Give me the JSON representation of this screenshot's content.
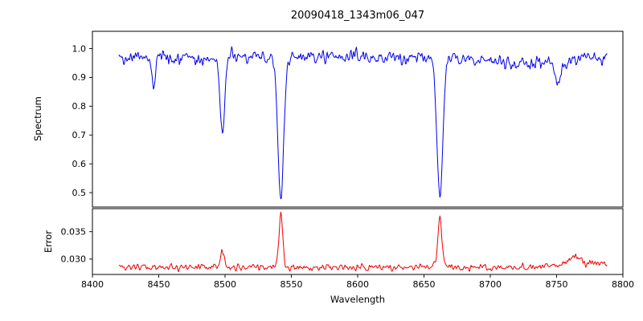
{
  "chart_data": {
    "type": "line",
    "title": "20090418_1343m06_047",
    "xlabel": "Wavelength",
    "xlim": [
      8400,
      8800
    ],
    "x_data_range": [
      8420,
      8788
    ],
    "x_step": 0.5,
    "xticks": [
      8400,
      8450,
      8500,
      8550,
      8600,
      8650,
      8700,
      8750,
      8800
    ],
    "xtick_labels": [
      "8400",
      "8450",
      "8500",
      "8550",
      "8600",
      "8650",
      "8700",
      "8750",
      "8800"
    ],
    "grid": false,
    "legend": "none",
    "seed": 42,
    "panels": [
      {
        "name": "spectrum",
        "ylabel": "Spectrum",
        "color": "#0000ee",
        "ylim": [
          0.45,
          1.06
        ],
        "yticks": [
          0.5,
          0.6,
          0.7,
          0.8,
          0.9,
          1.0
        ],
        "ytick_labels": [
          "0.5",
          "0.6",
          "0.7",
          "0.8",
          "0.9",
          "1.0"
        ],
        "base": 0.97,
        "noise_amp": 0.034,
        "features": [
          {
            "center": 8446,
            "amp": -0.1,
            "sigma": 1.2
          },
          {
            "center": 8498,
            "amp": -0.26,
            "sigma": 1.7
          },
          {
            "center": 8542,
            "amp": -0.49,
            "sigma": 2.2
          },
          {
            "center": 8662,
            "amp": -0.48,
            "sigma": 2.2
          },
          {
            "center": 8751,
            "amp": -0.09,
            "sigma": 2.0
          },
          {
            "center": 8725,
            "amp": -0.02,
            "sigma": 28
          },
          {
            "center": 8480,
            "amp": -0.008,
            "sigma": 15
          }
        ]
      },
      {
        "name": "error",
        "ylabel": "Error",
        "color": "#ee0000",
        "ylim": [
          0.0272,
          0.0392
        ],
        "yticks": [
          0.03,
          0.035
        ],
        "ytick_labels": [
          "0.030",
          "0.035"
        ],
        "base": 0.0285,
        "noise_amp": 0.00095,
        "features": [
          {
            "center": 8498,
            "amp": 0.0032,
            "sigma": 1.3
          },
          {
            "center": 8542,
            "amp": 0.0095,
            "sigma": 1.5
          },
          {
            "center": 8662,
            "amp": 0.0095,
            "sigma": 1.5
          },
          {
            "center": 8763,
            "amp": 0.0013,
            "sigma": 4.0
          },
          {
            "center": 8770,
            "amp": 0.0008,
            "sigma": 16
          }
        ]
      }
    ]
  }
}
